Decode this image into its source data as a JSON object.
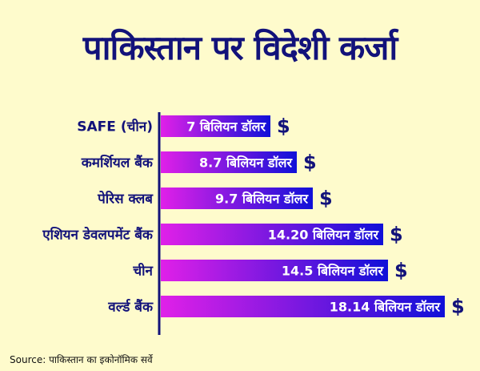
{
  "chart_data": {
    "type": "bar",
    "orientation": "horizontal",
    "title": "पाकिस्तान पर विदेशी कर्जा",
    "categories": [
      "SAFE (चीन)",
      "कमर्शियल बैंक",
      "पेरिस क्लब",
      "एशियन डेवलपमेंट बैंक",
      "चीन",
      "वर्ल्ड बैंक"
    ],
    "values": [
      7,
      8.7,
      9.7,
      14.2,
      14.5,
      18.14
    ],
    "value_labels": [
      "7 बिलियन डॉलर",
      "8.7 बिलियन डॉलर",
      "9.7 बिलियन डॉलर",
      "14.20 बिलियन डॉलर",
      "14.5 बिलियन डॉलर",
      "18.14 बिलियन डॉलर"
    ],
    "unit_symbol": "$",
    "xlim": [
      0,
      18.14
    ],
    "colors": {
      "gradient_start": "#e020e8",
      "gradient_end": "#1010d8",
      "axis": "#12127a"
    }
  },
  "source": "Source: पाकिस्तान का इकोनॉमिक सर्वे"
}
